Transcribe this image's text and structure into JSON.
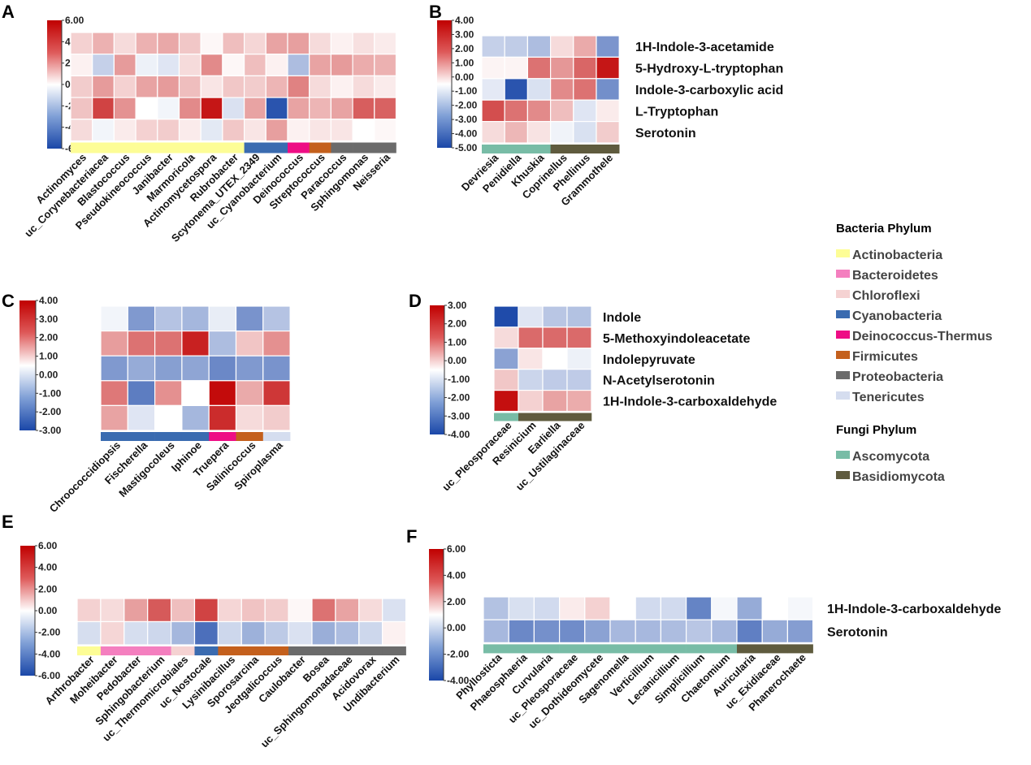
{
  "chart_data": [
    {
      "type": "heatmap",
      "panel": "A",
      "colorbar": {
        "ticks": [
          "6.00",
          "4.00",
          "2.00",
          "0.00",
          "-2.00",
          "-4.00",
          "-6.00"
        ],
        "range": [
          -6,
          6
        ]
      },
      "rows": [],
      "columns": [
        "Actinomyces",
        "uc_Corynebacteriacea",
        "Blastococcus",
        "Pseudokineococcus",
        "Janibacter",
        "Marmoricola",
        "Actinomycetospora",
        "Rubrobacter",
        "Scytonema_UTEX_2349",
        "uc_Cyanobacterium",
        "Deinococcus",
        "Streptococcus",
        "Paracoccus",
        "Sphingomonas",
        "Neisseria"
      ],
      "column_phylum": [
        "Actinobacteria",
        "Actinobacteria",
        "Actinobacteria",
        "Actinobacteria",
        "Actinobacteria",
        "Actinobacteria",
        "Actinobacteria",
        "Actinobacteria",
        "Cyanobacteria",
        "Cyanobacteria",
        "Deinococcus-Thermus",
        "Firmicutes",
        "Proteobacteria",
        "Proteobacteria",
        "Proteobacteria"
      ],
      "values": [
        [
          0.8,
          1.5,
          0.6,
          1.5,
          1.7,
          1.0,
          0.1,
          1.2,
          0.7,
          1.8,
          1.9,
          0.6,
          0.2,
          0.5,
          0.3
        ],
        [
          0.2,
          -1.2,
          2.0,
          -0.3,
          -0.6,
          0.6,
          2.4,
          0.1,
          1.2,
          0.2,
          -1.8,
          1.8,
          2.0,
          1.6,
          1.5
        ],
        [
          0.9,
          2.0,
          0.8,
          1.8,
          2.0,
          1.2,
          0.4,
          1.0,
          0.9,
          1.4,
          2.6,
          0.6,
          0.2,
          0.6,
          0.3
        ],
        [
          1.1,
          4.2,
          2.2,
          0.0,
          -0.2,
          2.4,
          5.4,
          -0.7,
          1.8,
          -5.5,
          1.8,
          1.4,
          1.8,
          3.5,
          3.4
        ],
        [
          0.6,
          -0.2,
          0.3,
          0.8,
          0.9,
          0.3,
          -0.5,
          1.0,
          0.4,
          1.9,
          0.2,
          0.4,
          0.4,
          0.0,
          0.1
        ]
      ]
    },
    {
      "type": "heatmap",
      "panel": "B",
      "colorbar": {
        "ticks": [
          "4.00",
          "3.00",
          "2.00",
          "1.00",
          "0.00",
          "-1.00",
          "-2.00",
          "-3.00",
          "-4.00",
          "-5.00"
        ],
        "range": [
          -5,
          4
        ]
      },
      "rows": [
        "1H-Indole-3-acetamide",
        "5-Hydroxy-L-tryptophan",
        "Indole-3-carboxylic acid",
        "L-Tryptophan",
        "Serotonin"
      ],
      "columns": [
        "Devriesia",
        "Penidiella",
        "Khuskia",
        "Coprinellus",
        "Phellinus",
        "Grammothele"
      ],
      "column_phylum": [
        "Ascomycota",
        "Ascomycota",
        "Ascomycota",
        "Basidiomycota",
        "Basidiomycota",
        "Basidiomycota"
      ],
      "values": [
        [
          -1.0,
          -1.1,
          -1.5,
          0.4,
          1.1,
          -2.6
        ],
        [
          0.1,
          0.1,
          2.0,
          1.4,
          2.2,
          3.6
        ],
        [
          -0.4,
          -4.6,
          -0.6,
          1.6,
          2.0,
          -2.8
        ],
        [
          2.6,
          2.0,
          1.6,
          0.8,
          -0.5,
          0.2
        ],
        [
          0.4,
          0.9,
          0.3,
          -0.2,
          -0.6,
          0.6
        ]
      ]
    },
    {
      "type": "heatmap",
      "panel": "C",
      "colorbar": {
        "ticks": [
          "4.00",
          "3.00",
          "2.00",
          "1.00",
          "0.00",
          "-1.00",
          "-2.00",
          "-3.00"
        ],
        "range": [
          -3,
          4
        ]
      },
      "rows": [],
      "columns": [
        "Chroococcidiopsis",
        "Fischerella",
        "Mastigocoleus",
        "Iphinoe",
        "Truepera",
        "Salinicoccus",
        "Spiroplasma"
      ],
      "column_phylum": [
        "Cyanobacteria",
        "Cyanobacteria",
        "Cyanobacteria",
        "Cyanobacteria",
        "Deinococcus-Thermus",
        "Firmicutes",
        "Tenericutes"
      ],
      "values": [
        [
          -0.1,
          -1.5,
          -0.8,
          -1.0,
          -0.2,
          -1.6,
          -0.8
        ],
        [
          1.3,
          2.0,
          2.0,
          3.4,
          -0.9,
          0.7,
          1.5
        ],
        [
          -1.5,
          -1.2,
          -1.4,
          -1.3,
          -1.8,
          -1.5,
          -1.6
        ],
        [
          1.9,
          -2.0,
          1.5,
          0.0,
          3.8,
          1.1,
          3.0
        ],
        [
          1.2,
          -0.3,
          0.0,
          -1.0,
          3.2,
          0.4,
          0.6
        ]
      ]
    },
    {
      "type": "heatmap",
      "panel": "D",
      "colorbar": {
        "ticks": [
          "3.00",
          "2.00",
          "1.00",
          "0.00",
          "-1.00",
          "-2.00",
          "-3.00",
          "-4.00"
        ],
        "range": [
          -4,
          3
        ]
      },
      "rows": [
        "Indole",
        "5-Methoxyindoleacetate",
        "Indolepyruvate",
        "N-Acetylserotonin",
        "1H-Indole-3-carboxaldehyde"
      ],
      "columns": [
        "uc_Pleosporaceae",
        "Resinicium",
        "Earliella",
        "uc_Ustilaginaceae"
      ],
      "column_phylum": [
        "Ascomycota",
        "Basidiomycota",
        "Basidiomycota",
        "Basidiomycota"
      ],
      "values": [
        [
          -3.9,
          -0.4,
          -1.0,
          -1.1
        ],
        [
          0.3,
          1.6,
          1.6,
          1.6
        ],
        [
          -1.8,
          0.2,
          0.0,
          -0.2
        ],
        [
          0.5,
          -0.7,
          -0.9,
          -0.9
        ],
        [
          2.8,
          0.4,
          0.9,
          0.8
        ]
      ]
    },
    {
      "type": "heatmap",
      "panel": "E",
      "colorbar": {
        "ticks": [
          "6.00",
          "4.00",
          "2.00",
          "0.00",
          "-2.00",
          "-4.00",
          "-6.00"
        ],
        "range": [
          -6,
          6
        ]
      },
      "rows": [],
      "columns": [
        "Arthrobacter",
        "Moheibacter",
        "Pedobacter",
        "Sphingobacterium",
        "uc_Thermomicrobiales",
        "uc_Nostocale",
        "Lysinibacillus",
        "Sporosarcina",
        "Jeotgalicoccus",
        "Caulobacter",
        "Bosea",
        "uc_Sphingomonadaceae",
        "Acidovorax",
        "Undibacterium"
      ],
      "column_phylum": [
        "Actinobacteria",
        "Bacteroidetes",
        "Bacteroidetes",
        "Bacteroidetes",
        "Chloroflexi",
        "Cyanobacteria",
        "Firmicutes",
        "Firmicutes",
        "Firmicutes",
        "Proteobacteria",
        "Proteobacteria",
        "Proteobacteria",
        "Proteobacteria",
        "Proteobacteria"
      ],
      "values": [
        [
          0.8,
          0.6,
          1.9,
          3.6,
          1.2,
          4.2,
          0.7,
          1.1,
          0.9,
          0.1,
          3.0,
          1.8,
          0.6,
          -0.7
        ],
        [
          -0.8,
          0.7,
          -0.8,
          -1.0,
          -2.0,
          -4.5,
          -1.0,
          -2.2,
          -1.4,
          -0.7,
          -2.3,
          -1.8,
          -1.0,
          0.2
        ]
      ]
    },
    {
      "type": "heatmap",
      "panel": "F",
      "colorbar": {
        "ticks": [
          "6.00",
          "4.00",
          "2.00",
          "0.00",
          "-2.00",
          "-4.00"
        ],
        "range": [
          -4,
          6
        ]
      },
      "rows": [
        "1H-Indole-3-carboxaldehyde",
        "Serotonin"
      ],
      "columns": [
        "Phyllosticta",
        "Phaeosphaeria",
        "Curvularia",
        "uc_Pleosporaceae",
        "uc_Dothideomycete",
        "Sagenomella",
        "Verticillium",
        "Lecanicillium",
        "Simplicillium",
        "Chaetomium",
        "Auricularia",
        "uc_Exidiaceae",
        "Phanerochaete"
      ],
      "column_phylum": [
        "Ascomycota",
        "Ascomycota",
        "Ascomycota",
        "Ascomycota",
        "Ascomycota",
        "Ascomycota",
        "Ascomycota",
        "Ascomycota",
        "Ascomycota",
        "Ascomycota",
        "Basidiomycota",
        "Basidiomycota",
        "Basidiomycota"
      ],
      "values": [
        [
          -1.1,
          -0.5,
          -0.6,
          0.3,
          0.8,
          0.0,
          -0.6,
          -0.6,
          -2.5,
          -0.1,
          -1.6,
          0.0,
          -0.1
        ],
        [
          -1.3,
          -2.4,
          -2.2,
          -2.3,
          -1.8,
          -1.3,
          -1.3,
          -1.2,
          -1.0,
          -1.3,
          -2.6,
          -1.6,
          -1.9
        ]
      ]
    }
  ],
  "panel_labels": [
    "A",
    "B",
    "C",
    "D",
    "E",
    "F"
  ],
  "legend": {
    "groups": [
      {
        "title": "Bacteria Phylum",
        "items": [
          {
            "label": "Actinobacteria",
            "color": "#fdfd96"
          },
          {
            "label": "Bacteroidetes",
            "color": "#f47fbf"
          },
          {
            "label": "Chloroflexi",
            "color": "#f5d2d2"
          },
          {
            "label": "Cyanobacteria",
            "color": "#3a6bb0"
          },
          {
            "label": "Deinococcus-Thermus",
            "color": "#ee0d85"
          },
          {
            "label": "Firmicutes",
            "color": "#c4601d"
          },
          {
            "label": "Proteobacteria",
            "color": "#6b6b6b"
          },
          {
            "label": "Tenericutes",
            "color": "#d5ddef"
          }
        ]
      },
      {
        "title": "Fungi Phylum",
        "items": [
          {
            "label": "Ascomycota",
            "color": "#78bca6"
          },
          {
            "label": "Basidiomycota",
            "color": "#5f5b3e"
          }
        ]
      }
    ]
  },
  "colors": {
    "high": "#c00000",
    "mid": "#ffffff",
    "low": "#1a47a8",
    "cell_border": "#ffffff"
  }
}
